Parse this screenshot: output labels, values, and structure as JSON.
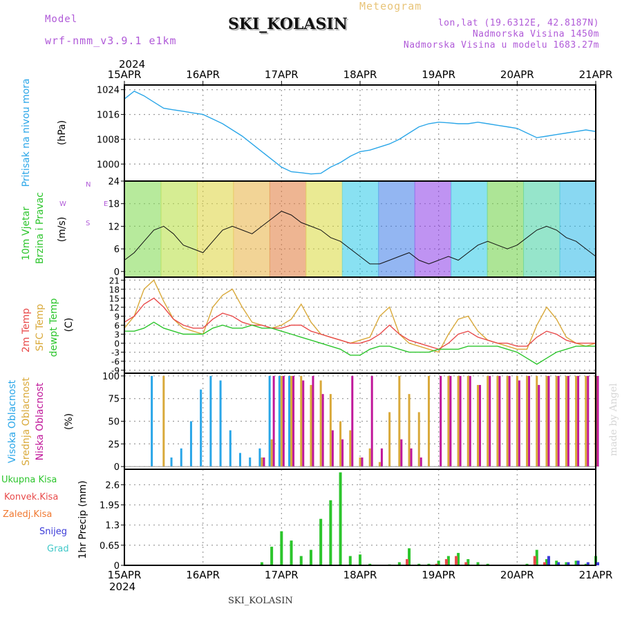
{
  "header": {
    "model_label": "Model",
    "model_name": "wrf-nmm_v3.9.1 e1km",
    "title": "SKI_KOLASIN",
    "meteogram": "Meteogram",
    "lonlat": "lon,lat (19.6312E, 42.8187N)",
    "altitude": "Nadmorska Visina 1450m",
    "model_altitude": "Nadmorska Visina u modelu 1683.27m"
  },
  "footer": {
    "station": "SKI_KOLASIN",
    "made_by": "made by Angel"
  },
  "colors": {
    "pressure": "#2aa6e8",
    "wind_label": "#2cc52c",
    "temp2m": "#e84a4a",
    "sfc": "#d9a93a",
    "dewpt": "#2cc52c",
    "cloud_high": "#2aa6e8",
    "cloud_mid": "#d9a93a",
    "cloud_low": "#c0179a",
    "precip_total": "#2cc52c",
    "precip_conv": "#e84a4a",
    "precip_frozen": "#f07830",
    "snow": "#3a3ad8",
    "graupel": "#40c8c8"
  },
  "chart_data": [
    {
      "type": "line",
      "panel": "pressure",
      "ylabel_color_label": "Pritisak na nivou mora",
      "unit": "(hPa)",
      "year": "2024",
      "x_ticks": [
        "15APR",
        "16APR",
        "17APR",
        "18APR",
        "19APR",
        "20APR",
        "21APR"
      ],
      "y_ticks": [
        1000,
        1008,
        1016,
        1024
      ],
      "ylim": [
        994.5,
        1025.5
      ],
      "x": [
        0,
        3,
        6,
        9,
        12,
        15,
        18,
        21,
        24,
        27,
        30,
        33,
        36,
        39,
        42,
        45,
        48,
        51,
        54,
        57,
        60,
        63,
        66,
        69,
        72,
        75,
        78,
        81,
        84,
        87,
        90,
        93,
        96,
        99,
        102,
        105,
        108,
        111,
        114,
        117,
        120,
        123,
        126,
        129,
        132,
        135,
        138,
        141,
        144
      ],
      "series": [
        {
          "values": [
            1021,
            1023.5,
            1022,
            1020,
            1018,
            1017.5,
            1017,
            1016.5,
            1016,
            1014.5,
            1013,
            1011,
            1009,
            1006.5,
            1004,
            1001.5,
            999,
            997.5,
            997.2,
            996.8,
            997,
            999,
            1000.5,
            1002.5,
            1004,
            1004.5,
            1005.5,
            1006.5,
            1008,
            1010,
            1012,
            1013,
            1013.5,
            1013.3,
            1013,
            1013,
            1013.5,
            1013,
            1012.5,
            1012,
            1011.5,
            1010,
            1008.5,
            1009,
            1009.5,
            1010,
            1010.5,
            1011,
            1010.5
          ]
        }
      ]
    },
    {
      "type": "line",
      "panel": "wind",
      "labels": [
        "10m Vjetar",
        "Brzina i Pravac"
      ],
      "unit": "(m/s)",
      "compass": {
        "w": "W",
        "e": "E",
        "n": "N",
        "s": "S"
      },
      "y_ticks": [
        0,
        6,
        12,
        18,
        24
      ],
      "ylim": [
        -1.5,
        24
      ],
      "x": [
        0,
        3,
        6,
        9,
        12,
        15,
        18,
        21,
        24,
        27,
        30,
        33,
        36,
        39,
        42,
        45,
        48,
        51,
        54,
        57,
        60,
        63,
        66,
        69,
        72,
        75,
        78,
        81,
        84,
        87,
        90,
        93,
        96,
        99,
        102,
        105,
        108,
        111,
        114,
        117,
        120,
        123,
        126,
        129,
        132,
        135,
        138,
        141,
        144
      ],
      "series": [
        {
          "name": "speed",
          "values": [
            3,
            5,
            8,
            11,
            12,
            10,
            7,
            6,
            5,
            8,
            11,
            12,
            11,
            10,
            12,
            14,
            16,
            15,
            13,
            12,
            11,
            9,
            8,
            6,
            4,
            2,
            2,
            3,
            4,
            5,
            3,
            2,
            3,
            4,
            3,
            5,
            7,
            8,
            7,
            6,
            7,
            9,
            11,
            12,
            11,
            9,
            8,
            6,
            4
          ]
        }
      ]
    },
    {
      "type": "line",
      "panel": "temperature",
      "labels": [
        "2m Temp",
        "SFC Temp",
        "dewpt Temp"
      ],
      "unit": "(C)",
      "y_ticks": [
        -9,
        -6,
        -3,
        0,
        3,
        6,
        9,
        12,
        15,
        18,
        21
      ],
      "ylim": [
        -10,
        22
      ],
      "x": [
        0,
        3,
        6,
        9,
        12,
        15,
        18,
        21,
        24,
        27,
        30,
        33,
        36,
        39,
        42,
        45,
        48,
        51,
        54,
        57,
        60,
        63,
        66,
        69,
        72,
        75,
        78,
        81,
        84,
        87,
        90,
        93,
        96,
        99,
        102,
        105,
        108,
        111,
        114,
        117,
        120,
        123,
        126,
        129,
        132,
        135,
        138,
        141,
        144
      ],
      "series": [
        {
          "name": "2m Temp",
          "values": [
            7,
            9,
            13,
            15,
            12,
            8,
            6,
            5,
            5,
            8,
            10,
            9,
            7,
            6,
            6,
            5,
            5,
            6,
            6,
            4,
            3,
            2,
            1,
            0,
            0,
            1,
            3,
            6,
            3,
            1,
            0,
            -1,
            -2,
            0,
            3,
            4,
            2,
            1,
            0,
            0,
            -1,
            -1,
            2,
            4,
            3,
            1,
            0,
            0,
            0
          ]
        },
        {
          "name": "SFC Temp",
          "values": [
            5,
            9,
            18,
            21,
            14,
            8,
            5,
            4,
            3,
            12,
            16,
            18,
            12,
            7,
            6,
            5,
            6,
            8,
            13,
            7,
            3,
            2,
            1,
            0,
            1,
            2,
            9,
            12,
            3,
            0,
            -1,
            -2,
            -3,
            3,
            8,
            9,
            4,
            1,
            0,
            -1,
            -2,
            -2,
            6,
            12,
            8,
            2,
            0,
            -1,
            0
          ]
        },
        {
          "name": "dewpt Temp",
          "values": [
            4,
            4,
            5,
            7,
            5,
            4,
            3,
            3,
            3,
            5,
            6,
            5,
            5,
            6,
            5,
            5,
            4,
            3,
            2,
            1,
            0,
            -1,
            -2,
            -4,
            -4,
            -2,
            -1,
            -1,
            -2,
            -3,
            -3,
            -3,
            -2,
            -2,
            -2,
            -1,
            -1,
            -1,
            -1,
            -2,
            -3,
            -5,
            -7,
            -5,
            -3,
            -2,
            -1,
            -1,
            -1
          ]
        }
      ]
    },
    {
      "type": "bar",
      "panel": "clouds",
      "labels": [
        "Visoka Oblacnost",
        "Srednja Oblacnost",
        "Niska Oblacnost"
      ],
      "unit": "(%)",
      "y_ticks": [
        0,
        25,
        50,
        75,
        100
      ],
      "ylim": [
        -3,
        103
      ],
      "x": [
        0,
        3,
        6,
        9,
        12,
        15,
        18,
        21,
        24,
        27,
        30,
        33,
        36,
        39,
        42,
        45,
        48,
        51,
        54,
        57,
        60,
        63,
        66,
        69,
        72,
        75,
        78,
        81,
        84,
        87,
        90,
        93,
        96,
        99,
        102,
        105,
        108,
        111,
        114,
        117,
        120,
        123,
        126,
        129,
        132,
        135,
        138,
        141,
        144
      ],
      "series": [
        {
          "name": "high",
          "values": [
            0,
            0,
            0,
            100,
            0,
            10,
            20,
            50,
            85,
            100,
            95,
            40,
            15,
            10,
            20,
            100,
            100,
            100,
            0,
            0,
            0,
            0,
            0,
            0,
            0,
            0,
            0,
            0,
            0,
            0,
            0,
            0,
            0,
            0,
            0,
            0,
            0,
            0,
            0,
            0,
            0,
            0,
            0,
            0,
            0,
            0,
            0,
            0,
            0
          ]
        },
        {
          "name": "mid",
          "values": [
            0,
            0,
            0,
            0,
            100,
            0,
            0,
            0,
            0,
            0,
            0,
            0,
            0,
            0,
            10,
            30,
            100,
            100,
            100,
            90,
            95,
            80,
            50,
            40,
            10,
            20,
            5,
            60,
            100,
            80,
            60,
            100,
            0,
            100,
            100,
            100,
            90,
            100,
            100,
            100,
            100,
            100,
            100,
            100,
            100,
            100,
            100,
            100,
            100
          ]
        },
        {
          "name": "low",
          "values": [
            0,
            0,
            0,
            0,
            0,
            0,
            0,
            0,
            0,
            0,
            0,
            0,
            0,
            0,
            10,
            100,
            100,
            100,
            95,
            100,
            80,
            40,
            30,
            100,
            10,
            100,
            20,
            0,
            30,
            20,
            10,
            0,
            100,
            100,
            100,
            100,
            90,
            100,
            100,
            100,
            95,
            100,
            90,
            100,
            100,
            100,
            100,
            100,
            100
          ]
        }
      ]
    },
    {
      "type": "bar",
      "panel": "precip",
      "legend": [
        "Ukupna Kisa",
        "Konvek.Kisa",
        "Zaledj.Kisa",
        "Snijeg",
        "Grad"
      ],
      "ylabel": "1hr Precip (mm)",
      "y_ticks": [
        0,
        0.65,
        1.3,
        1.95,
        2.6
      ],
      "ylim": [
        0,
        3.1
      ],
      "x": [
        0,
        3,
        6,
        9,
        12,
        15,
        18,
        21,
        24,
        27,
        30,
        33,
        36,
        39,
        42,
        45,
        48,
        51,
        54,
        57,
        60,
        63,
        66,
        69,
        72,
        75,
        78,
        81,
        84,
        87,
        90,
        93,
        96,
        99,
        102,
        105,
        108,
        111,
        114,
        117,
        120,
        123,
        126,
        129,
        132,
        135,
        138,
        141,
        144
      ],
      "series": [
        {
          "name": "Ukupna Kisa",
          "values": [
            0,
            0,
            0,
            0,
            0,
            0,
            0,
            0,
            0,
            0,
            0,
            0,
            0,
            0.02,
            0.1,
            0.6,
            1.1,
            0.8,
            0.3,
            0.5,
            1.5,
            2.1,
            3.0,
            0.3,
            0.35,
            0.05,
            0,
            0.03,
            0.1,
            0.55,
            0.05,
            0.05,
            0.15,
            0.3,
            0.4,
            0.2,
            0.1,
            0.05,
            0,
            0.02,
            0.02,
            0.05,
            0.5,
            0.2,
            0.15,
            0.1,
            0.15,
            0.05,
            0.3
          ]
        },
        {
          "name": "Konvek.Kisa",
          "values": [
            0,
            0,
            0,
            0,
            0,
            0,
            0,
            0,
            0,
            0,
            0,
            0,
            0,
            0,
            0,
            0,
            0,
            0,
            0,
            0,
            0,
            0,
            0,
            0,
            0,
            0,
            0,
            0,
            0,
            0.2,
            0,
            0,
            0.05,
            0.2,
            0.3,
            0.1,
            0,
            0,
            0,
            0,
            0,
            0,
            0.3,
            0.1,
            0,
            0,
            0,
            0,
            0
          ]
        },
        {
          "name": "Snijeg",
          "values": [
            0,
            0,
            0,
            0,
            0,
            0,
            0,
            0,
            0,
            0,
            0,
            0,
            0,
            0,
            0,
            0,
            0,
            0,
            0,
            0,
            0,
            0,
            0,
            0,
            0,
            0,
            0,
            0,
            0,
            0,
            0,
            0,
            0,
            0,
            0,
            0,
            0,
            0,
            0,
            0,
            0,
            0,
            0,
            0.3,
            0.1,
            0.1,
            0.15,
            0.1,
            0.1
          ]
        }
      ]
    }
  ]
}
